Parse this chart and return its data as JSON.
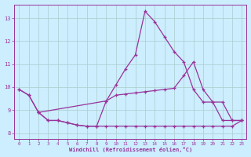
{
  "xlabel": "Windchill (Refroidissement éolien,°C)",
  "bg_color": "#cceeff",
  "line_color": "#993399",
  "grid_color": "#aacccc",
  "xlim_min": -0.5,
  "xlim_max": 23.5,
  "ylim_min": 7.75,
  "ylim_max": 13.6,
  "xticks": [
    0,
    1,
    2,
    3,
    4,
    5,
    6,
    7,
    8,
    9,
    10,
    11,
    12,
    13,
    14,
    15,
    16,
    17,
    18,
    19,
    20,
    21,
    22,
    23
  ],
  "yticks": [
    8,
    9,
    10,
    11,
    12,
    13
  ],
  "line1_x": [
    0,
    1,
    2,
    3,
    4,
    5,
    6,
    7,
    8,
    9,
    10,
    11,
    12,
    13,
    14,
    15,
    16,
    17,
    18,
    19,
    20,
    21,
    22,
    23
  ],
  "line1_y": [
    9.9,
    9.65,
    8.9,
    8.55,
    8.55,
    8.45,
    8.35,
    8.3,
    8.3,
    9.4,
    10.1,
    10.8,
    11.4,
    13.3,
    12.85,
    12.2,
    11.55,
    11.1,
    9.9,
    9.35,
    9.35,
    8.55,
    8.55,
    8.55
  ],
  "line2_x": [
    0,
    1,
    2,
    9,
    10,
    11,
    12,
    13,
    14,
    15,
    16,
    17,
    18,
    19,
    20,
    21,
    22,
    23
  ],
  "line2_y": [
    9.9,
    9.65,
    8.9,
    9.4,
    9.65,
    9.7,
    9.75,
    9.8,
    9.85,
    9.9,
    9.95,
    10.5,
    11.1,
    9.9,
    9.35,
    9.35,
    8.55,
    8.55
  ],
  "line3_x": [
    2,
    3,
    4,
    5,
    6,
    7,
    8,
    9,
    10,
    11,
    12,
    13,
    14,
    15,
    16,
    17,
    18,
    19,
    20,
    21,
    22,
    23
  ],
  "line3_y": [
    8.9,
    8.55,
    8.55,
    8.45,
    8.35,
    8.3,
    8.3,
    8.3,
    8.3,
    8.3,
    8.3,
    8.3,
    8.3,
    8.3,
    8.3,
    8.3,
    8.3,
    8.3,
    8.3,
    8.3,
    8.3,
    8.55
  ]
}
